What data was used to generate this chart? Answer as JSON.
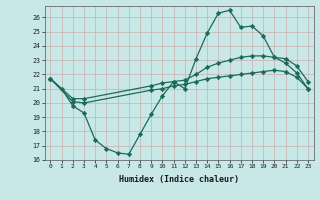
{
  "xlabel": "Humidex (Indice chaleur)",
  "background_color": "#c8e8e8",
  "grid_color_major": "#c0d8d8",
  "grid_color_minor": "#e0c8c8",
  "line_color": "#1a6b5a",
  "xlim": [
    -0.5,
    23.5
  ],
  "ylim": [
    16,
    26.8
  ],
  "xticks": [
    0,
    1,
    2,
    3,
    4,
    5,
    6,
    7,
    8,
    9,
    10,
    11,
    12,
    13,
    14,
    15,
    16,
    17,
    18,
    19,
    20,
    21,
    22,
    23
  ],
  "yticks": [
    16,
    17,
    18,
    19,
    20,
    21,
    22,
    23,
    24,
    25,
    26
  ],
  "line1_x": [
    0,
    1,
    2,
    3,
    4,
    5,
    6,
    7,
    8,
    9,
    10,
    11,
    12,
    13,
    14,
    15,
    16,
    17,
    18,
    19,
    20,
    21,
    22,
    23
  ],
  "line1_y": [
    21.7,
    21.0,
    19.8,
    19.3,
    17.4,
    16.8,
    16.5,
    16.4,
    17.8,
    19.2,
    20.5,
    21.5,
    21.0,
    23.1,
    24.9,
    26.3,
    26.5,
    25.3,
    25.4,
    24.7,
    23.2,
    22.8,
    22.1,
    21.0
  ],
  "line2_x": [
    0,
    2,
    3,
    9,
    10,
    11,
    12,
    13,
    14,
    15,
    16,
    17,
    18,
    19,
    20,
    21,
    22,
    23
  ],
  "line2_y": [
    21.7,
    20.3,
    20.3,
    21.2,
    21.4,
    21.5,
    21.6,
    22.0,
    22.5,
    22.8,
    23.0,
    23.2,
    23.3,
    23.3,
    23.2,
    23.1,
    22.6,
    21.5
  ],
  "line3_x": [
    0,
    2,
    3,
    9,
    10,
    11,
    12,
    13,
    14,
    15,
    16,
    17,
    18,
    19,
    20,
    21,
    22,
    23
  ],
  "line3_y": [
    21.7,
    20.1,
    20.0,
    20.9,
    21.0,
    21.2,
    21.3,
    21.5,
    21.7,
    21.8,
    21.9,
    22.0,
    22.1,
    22.2,
    22.3,
    22.2,
    21.8,
    21.0
  ],
  "marker": "D",
  "markersize": 2.2,
  "linewidth": 0.9
}
